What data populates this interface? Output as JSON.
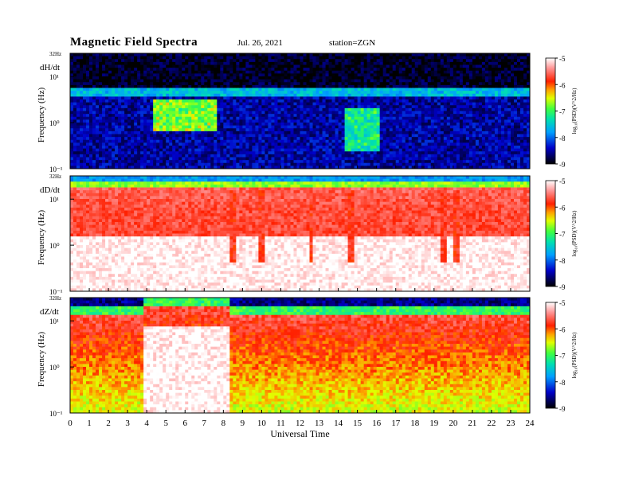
{
  "header": {
    "title": "Magnetic  Field  Spectra",
    "date": "Jul.  26, 2021",
    "station": "station=ZGN"
  },
  "chart_data": [
    {
      "type": "heatmap",
      "panel_label": "dH/dt",
      "ylabel": "Frequency  (Hz)",
      "y_top_label": "32Hz",
      "y_ticks": [
        "10¹",
        "10⁰",
        "10⁻¹"
      ],
      "yscale": "log",
      "xlim": [
        0,
        24
      ],
      "colorbar": {
        "ticks": [
          "-5",
          "-6",
          "-7",
          "-8",
          "-9"
        ],
        "label": "log₁₀(PSD)(V^2/Hz)",
        "range": [
          -9,
          -5
        ]
      },
      "ridge_log10_hz": 0.6,
      "note_levels": "background -8.6 below 0.4 log Hz; activity patches near 4.5-7.5 UT and 14.5-16 UT around -7.3"
    },
    {
      "type": "heatmap",
      "panel_label": "dD/dt",
      "ylabel": "Frequency  (Hz)",
      "y_top_label": "32Hz",
      "y_ticks": [
        "10¹",
        "10⁰",
        "10⁻¹"
      ],
      "yscale": "log",
      "xlim": [
        0,
        24
      ],
      "colorbar": {
        "ticks": [
          "-5",
          "-6",
          "-7",
          "-8",
          "-9"
        ],
        "label": "log₁₀(PSD)(V^2/Hz)",
        "range": [
          -9,
          -5
        ]
      },
      "ridge_log10_hz": 1.25,
      "dropouts_ut": [
        8.5,
        9.9,
        10.1,
        12.6,
        14.7,
        19.5,
        20.2
      ]
    },
    {
      "type": "heatmap",
      "panel_label": "dZ/dt",
      "ylabel": "Frequency  (Hz)",
      "y_top_label": "32Hz",
      "y_ticks": [
        "10¹",
        "10⁰",
        "10⁻¹"
      ],
      "yscale": "log",
      "xlim": [
        0,
        24
      ],
      "xlabel": "Universal  Time",
      "x_ticks": [
        "0",
        "1",
        "2",
        "3",
        "4",
        "5",
        "6",
        "7",
        "8",
        "9",
        "10",
        "11",
        "12",
        "13",
        "14",
        "15",
        "16",
        "17",
        "18",
        "19",
        "20",
        "21",
        "22",
        "23",
        "24"
      ],
      "colorbar": {
        "ticks": [
          "-5",
          "-6",
          "-7",
          "-8",
          "-9"
        ],
        "label": "log₁₀(PSD)(V^2/Hz)",
        "range": [
          -9,
          -5
        ]
      },
      "ridge_log10_hz": 1.1,
      "quiet_interval_ut": [
        3.8,
        8.3
      ]
    }
  ]
}
